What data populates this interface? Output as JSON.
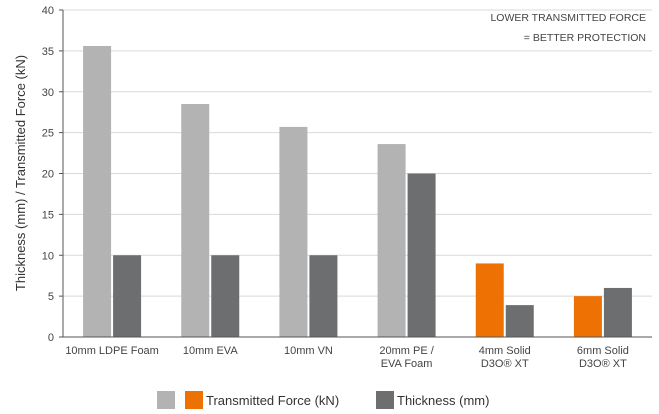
{
  "chart_data": {
    "type": "bar",
    "categories": [
      [
        "10mm LDPE Foam"
      ],
      [
        "10mm EVA"
      ],
      [
        "10mm VN"
      ],
      [
        "20mm PE /",
        "EVA Foam"
      ],
      [
        "4mm Solid",
        "D3O® XT"
      ],
      [
        "6mm Solid",
        "D3O® XT"
      ]
    ],
    "series": [
      {
        "name": "Transmitted Force (kN)",
        "values": [
          35.6,
          28.5,
          25.7,
          23.6,
          9.0,
          5.0
        ],
        "colors": [
          "#b3b3b3",
          "#b3b3b3",
          "#b3b3b3",
          "#b3b3b3",
          "#ee7203",
          "#ee7203"
        ]
      },
      {
        "name": "Thickness (mm)",
        "values": [
          10,
          10,
          10,
          20,
          3.9,
          6
        ],
        "colors": [
          "#6d6e70",
          "#6d6e70",
          "#6d6e70",
          "#6d6e70",
          "#6d6e70",
          "#6d6e70"
        ]
      }
    ],
    "ylabel": "Thickness (mm) / Transmitted Force (kN)",
    "ylim": [
      0,
      40
    ],
    "yticks": [
      "0",
      "5",
      "10",
      "15",
      "20",
      "25",
      "30",
      "35",
      "40"
    ],
    "grid": true,
    "annotation": [
      "LOWER TRANSMITTED FORCE",
      "= BETTER PROTECTION"
    ],
    "annotation_position": "top-right",
    "legend_position": "bottom",
    "legend": [
      {
        "label": "",
        "color": "#b3b3b3"
      },
      {
        "label": "Transmitted Force (kN)",
        "color": "#ee7203"
      },
      {
        "label": "Thickness (mm)",
        "color": "#6d6e70"
      }
    ]
  }
}
